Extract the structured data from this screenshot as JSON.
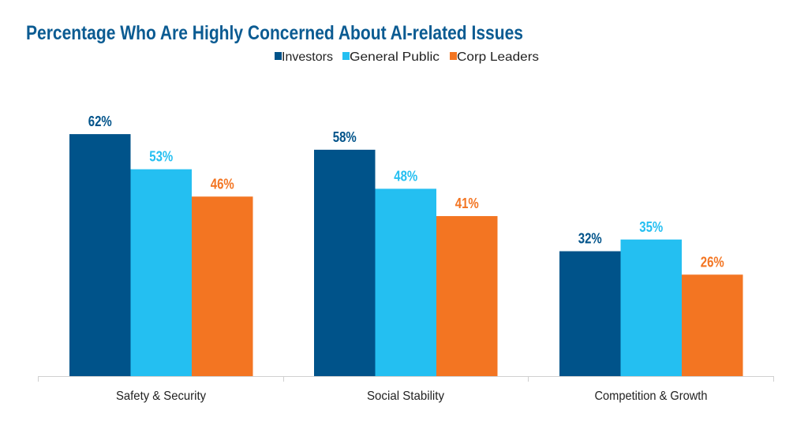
{
  "chart_data": {
    "type": "bar",
    "title": "Percentage Who Are Highly Concerned About AI-related Issues",
    "categories": [
      "Safety & Security",
      "Social Stability",
      "Competition & Growth"
    ],
    "series": [
      {
        "name": "Investors",
        "color": "#00538a",
        "values": [
          62,
          58,
          32
        ],
        "labels": [
          "62%",
          "58%",
          "32%"
        ]
      },
      {
        "name": "General Public",
        "color": "#24bff1",
        "values": [
          53,
          48,
          35
        ],
        "labels": [
          "53%",
          "48%",
          "35%"
        ]
      },
      {
        "name": "Corp Leaders",
        "color": "#f37522",
        "values": [
          46,
          41,
          26
        ],
        "labels": [
          "46%",
          "41%",
          "26%"
        ]
      }
    ],
    "xlabel": "",
    "ylabel": "",
    "ylim": [
      0,
      100
    ],
    "grid": false,
    "legend": "top-center"
  }
}
